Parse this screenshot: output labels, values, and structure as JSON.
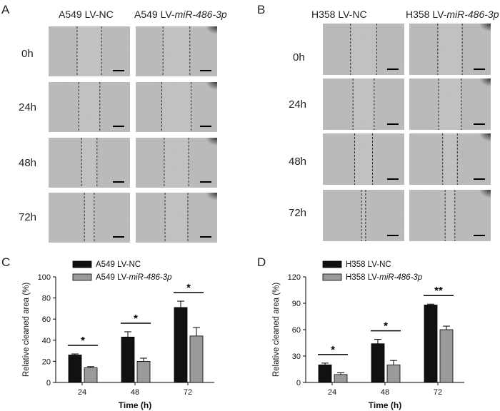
{
  "panel_labels": [
    "A",
    "B",
    "C",
    "D"
  ],
  "panelA": {
    "columns": [
      {
        "prefix": "A549 LV-NC",
        "italic": ""
      },
      {
        "prefix": "A549 LV-",
        "italic": "miR-486-3p"
      }
    ],
    "rows": [
      "0h",
      "24h",
      "48h",
      "72h"
    ],
    "gap_widths": [
      0.3,
      0.26,
      0.19,
      0.12,
      0.33,
      0.36,
      0.3,
      0.28
    ]
  },
  "panelB": {
    "columns": [
      {
        "prefix": "H358 LV-NC",
        "italic": ""
      },
      {
        "prefix": "H358 LV-",
        "italic": "miR-486-3p"
      }
    ],
    "rows": [
      "0h",
      "24h",
      "48h",
      "72h"
    ],
    "gap_widths": [
      0.32,
      0.26,
      0.22,
      0.05,
      0.3,
      0.28,
      0.18,
      0.12
    ]
  },
  "chart_data": [
    {
      "type": "bar",
      "panel": "C",
      "categories": [
        "24",
        "48",
        "72"
      ],
      "series": [
        {
          "name": "A549 LV-NC",
          "name_prefix": "A549 LV-NC",
          "name_italic": "",
          "values": [
            26,
            43,
            71
          ],
          "errors": [
            1,
            5,
            6
          ],
          "color": "#111111"
        },
        {
          "name": "A549 LV-miR-486-3p",
          "name_prefix": "A549 LV-",
          "name_italic": "miR-486-3p",
          "values": [
            14,
            20,
            44
          ],
          "errors": [
            1,
            3,
            8
          ],
          "color": "#9a9a9a"
        }
      ],
      "xlabel": "Time (h)",
      "ylabel": "Relative cleaned area (%)",
      "ylim": [
        0,
        100
      ],
      "yticks": [
        0,
        20,
        40,
        60,
        80,
        100
      ],
      "significance": [
        "*",
        "*",
        "*"
      ]
    },
    {
      "type": "bar",
      "panel": "D",
      "categories": [
        "24",
        "48",
        "72"
      ],
      "series": [
        {
          "name": "H358 LV-NC",
          "name_prefix": "H358 LV-NC",
          "name_italic": "",
          "values": [
            20,
            44,
            88
          ],
          "errors": [
            2,
            5,
            1
          ],
          "color": "#111111"
        },
        {
          "name": "H358 LV-miR-486-3p",
          "name_prefix": "H358 LV-",
          "name_italic": "miR-486-3p",
          "values": [
            9,
            20,
            60
          ],
          "errors": [
            2,
            5,
            4
          ],
          "color": "#9a9a9a"
        }
      ],
      "xlabel": "Time (h)",
      "ylabel": "Relative cleaned area (%)",
      "ylim": [
        0,
        120
      ],
      "yticks": [
        0,
        30,
        60,
        90,
        120
      ],
      "significance": [
        "*",
        "*",
        "**"
      ]
    }
  ]
}
